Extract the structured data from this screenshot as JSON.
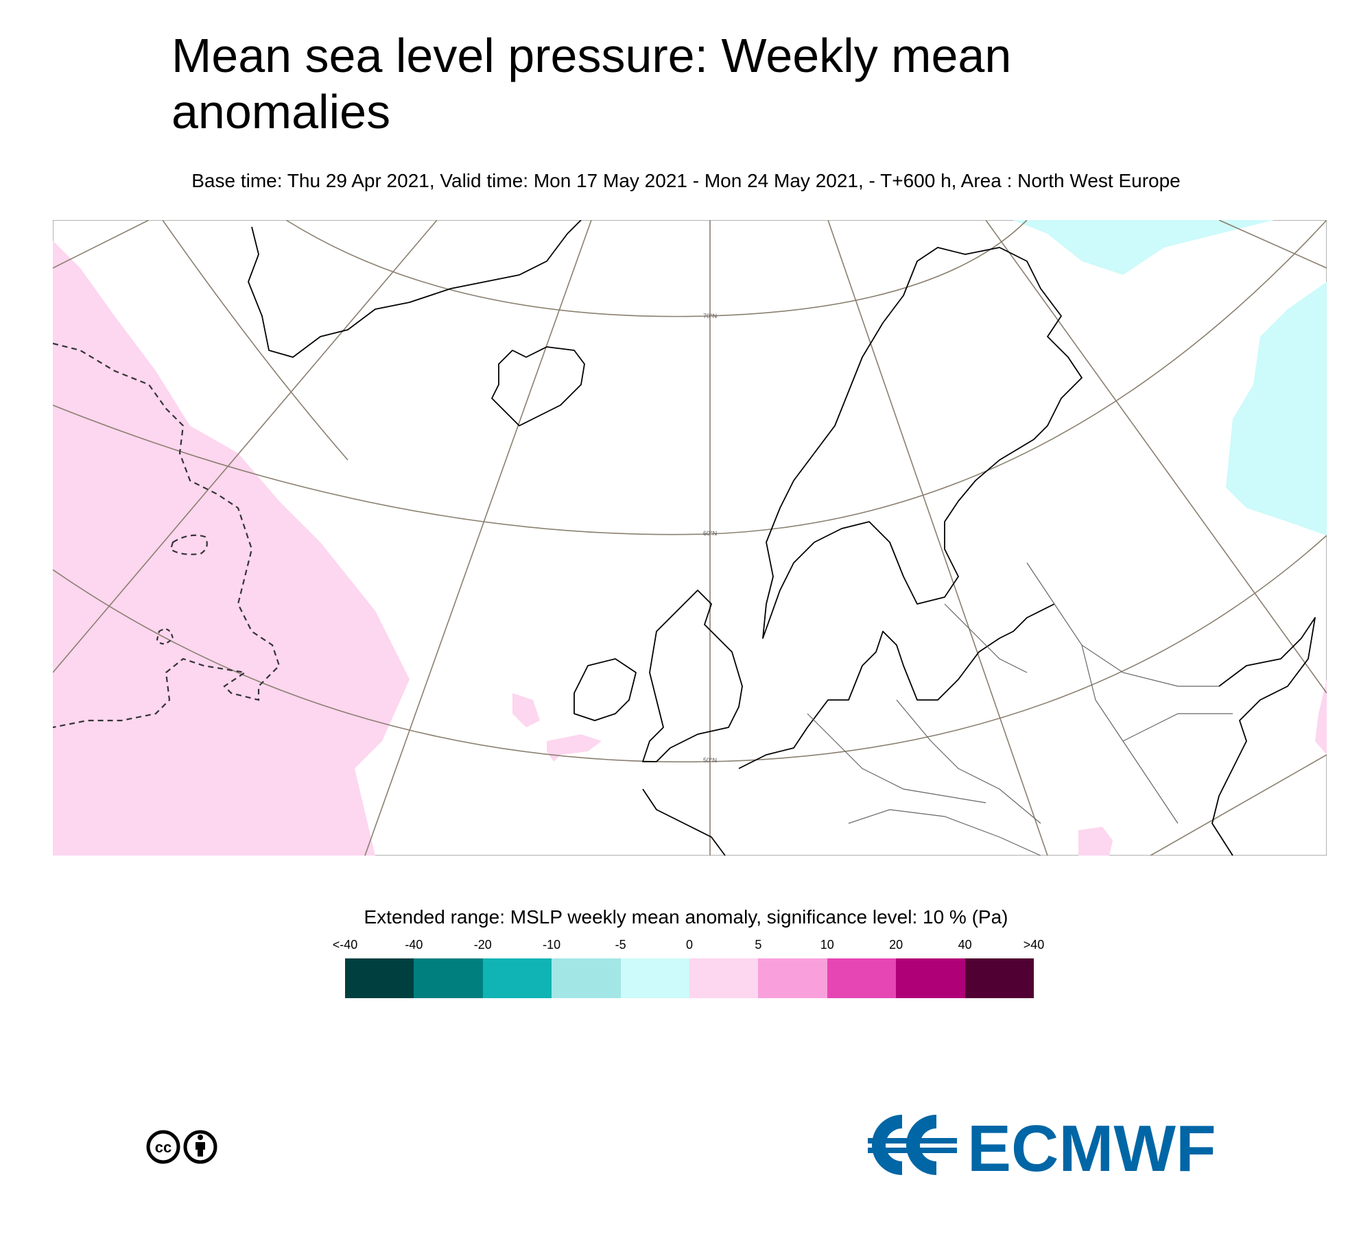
{
  "title": "Mean sea level pressure: Weekly mean anomalies",
  "subtitle": "Base time: Thu 29 Apr 2021, Valid time: Mon 17 May 2021 - Mon 24 May 2021, - T+600 h, Area : North West Europe",
  "map": {
    "lat_labels": [
      "70°N",
      "60°N",
      "50°N"
    ]
  },
  "legend": {
    "title": "Extended range: MSLP weekly mean anomaly, significance level: 10 % (Pa)",
    "labels": [
      "<-40",
      "-40",
      "-20",
      "-10",
      "-5",
      "0",
      "5",
      "10",
      "20",
      "40",
      ">40"
    ],
    "colors": [
      "#003f3f",
      "#007f7f",
      "#10b4b4",
      "#a3e6e6",
      "#cdfafa",
      "#fdd6ef",
      "#f9a0dc",
      "#e646b4",
      "#b00078",
      "#500032"
    ]
  },
  "logo": {
    "text": "ECMWF",
    "color": "#0066a6"
  },
  "license_icon": "cc-by-icon"
}
